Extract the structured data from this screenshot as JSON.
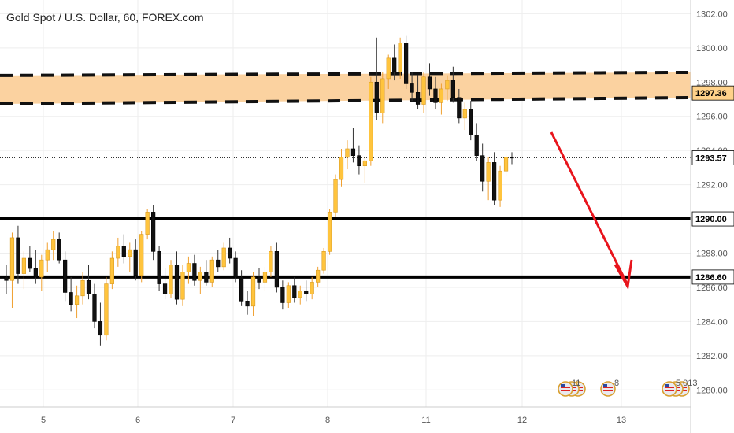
{
  "header": {
    "title": "Gold Spot / U.S. Dollar, 60, FOREX.com"
  },
  "colors": {
    "up": "#ffc43d",
    "down": "#111111",
    "wick_up": "#f0a030",
    "wick_down": "#333333",
    "zone": "#fbd2a0",
    "arrow": "#e8141c",
    "grid": "#eeeeee"
  },
  "chart_data": {
    "type": "candlestick",
    "title": "Gold Spot / U.S. Dollar, 60, FOREX.com",
    "ylim": [
      1279,
      1302.8
    ],
    "y_ticks": [
      "1280.00",
      "1282.00",
      "1284.00",
      "1286.00",
      "1288.00",
      "1290.00",
      "1292.00",
      "1294.00",
      "1296.00",
      "1298.00",
      "1300.00",
      "1302.00"
    ],
    "x_ticks": [
      "5",
      "6",
      "7",
      "8",
      "11",
      "12",
      "13"
    ],
    "current_price": "1293.57",
    "levels": [
      {
        "label": "1290.00",
        "value": 1290.0
      },
      {
        "label": "1286.60",
        "value": 1286.6
      }
    ],
    "zone": {
      "label": "1297.36",
      "low": 1297.0,
      "high": 1298.2
    },
    "event_markers": [
      {
        "label": "11"
      },
      {
        "label": "8"
      },
      {
        "label": "5 013"
      }
    ],
    "series": [
      {
        "ohlc": [
          [
            1286.6,
            1287.3,
            1285.6,
            1286.4
          ],
          [
            1286.4,
            1289.2,
            1284.8,
            1288.9
          ],
          [
            1288.9,
            1289.6,
            1286.2,
            1286.8
          ],
          [
            1286.8,
            1288.1,
            1285.9,
            1287.7
          ],
          [
            1287.7,
            1288.4,
            1286.9,
            1287.1
          ],
          [
            1287.1,
            1288.2,
            1286.2,
            1286.6
          ],
          [
            1286.6,
            1287.9,
            1285.8,
            1287.6
          ],
          [
            1287.6,
            1288.6,
            1286.9,
            1288.2
          ],
          [
            1288.2,
            1289.3,
            1287.6,
            1288.8
          ],
          [
            1288.8,
            1289.2,
            1287.4,
            1287.6
          ],
          [
            1287.6,
            1288.1,
            1285.2,
            1285.7
          ],
          [
            1285.7,
            1286.6,
            1284.6,
            1285.0
          ],
          [
            1285.0,
            1286.1,
            1284.2,
            1285.5
          ],
          [
            1285.5,
            1286.9,
            1285.0,
            1286.4
          ],
          [
            1286.4,
            1287.3,
            1285.3,
            1285.6
          ],
          [
            1285.6,
            1286.2,
            1283.6,
            1284.0
          ],
          [
            1284.0,
            1285.1,
            1282.6,
            1283.2
          ],
          [
            1283.2,
            1286.6,
            1282.9,
            1286.2
          ],
          [
            1286.2,
            1288.1,
            1285.9,
            1287.7
          ],
          [
            1287.7,
            1288.9,
            1287.2,
            1288.4
          ],
          [
            1288.4,
            1289.1,
            1287.4,
            1287.8
          ],
          [
            1287.8,
            1288.6,
            1286.9,
            1288.2
          ],
          [
            1288.2,
            1288.8,
            1286.4,
            1286.7
          ],
          [
            1286.7,
            1289.3,
            1286.3,
            1289.1
          ],
          [
            1289.1,
            1290.6,
            1288.8,
            1290.4
          ],
          [
            1290.4,
            1290.8,
            1287.6,
            1288.1
          ],
          [
            1288.1,
            1288.4,
            1285.8,
            1286.2
          ],
          [
            1286.2,
            1287.1,
            1285.3,
            1285.6
          ],
          [
            1285.6,
            1287.6,
            1285.4,
            1287.3
          ],
          [
            1287.3,
            1288.1,
            1285.0,
            1285.3
          ],
          [
            1285.3,
            1287.3,
            1284.9,
            1286.9
          ],
          [
            1286.9,
            1287.8,
            1286.2,
            1287.4
          ],
          [
            1287.4,
            1287.9,
            1286.1,
            1286.4
          ],
          [
            1286.4,
            1287.2,
            1285.6,
            1286.9
          ],
          [
            1286.9,
            1287.6,
            1286.1,
            1286.3
          ],
          [
            1286.3,
            1287.8,
            1286.0,
            1287.6
          ],
          [
            1287.6,
            1288.2,
            1286.9,
            1287.2
          ],
          [
            1287.2,
            1288.6,
            1287.0,
            1288.3
          ],
          [
            1288.3,
            1288.9,
            1287.4,
            1287.7
          ],
          [
            1287.7,
            1288.1,
            1286.3,
            1286.6
          ],
          [
            1286.6,
            1287.0,
            1284.9,
            1285.2
          ],
          [
            1285.2,
            1285.8,
            1284.4,
            1284.9
          ],
          [
            1284.9,
            1286.9,
            1284.3,
            1286.6
          ],
          [
            1286.6,
            1287.1,
            1285.9,
            1286.3
          ],
          [
            1286.3,
            1287.2,
            1285.8,
            1286.9
          ],
          [
            1286.9,
            1288.4,
            1286.6,
            1288.1
          ],
          [
            1288.1,
            1288.6,
            1285.7,
            1286.0
          ],
          [
            1286.0,
            1286.4,
            1284.7,
            1285.1
          ],
          [
            1285.1,
            1286.3,
            1284.8,
            1286.1
          ],
          [
            1286.1,
            1286.6,
            1285.1,
            1285.4
          ],
          [
            1285.4,
            1286.1,
            1285.0,
            1285.8
          ],
          [
            1285.8,
            1286.4,
            1285.2,
            1285.6
          ],
          [
            1285.6,
            1286.6,
            1285.3,
            1286.3
          ],
          [
            1286.3,
            1287.2,
            1286.0,
            1287.0
          ],
          [
            1287.0,
            1288.3,
            1286.8,
            1288.1
          ],
          [
            1288.1,
            1290.6,
            1287.9,
            1290.4
          ],
          [
            1290.4,
            1292.6,
            1290.1,
            1292.3
          ],
          [
            1292.3,
            1294.1,
            1291.9,
            1293.6
          ],
          [
            1293.6,
            1294.6,
            1292.9,
            1294.1
          ],
          [
            1294.1,
            1295.3,
            1293.3,
            1293.7
          ],
          [
            1293.7,
            1294.3,
            1292.6,
            1293.1
          ],
          [
            1293.1,
            1293.6,
            1292.1,
            1293.4
          ],
          [
            1293.4,
            1298.3,
            1293.1,
            1298.0
          ],
          [
            1298.0,
            1300.6,
            1295.8,
            1296.2
          ],
          [
            1296.2,
            1298.6,
            1295.6,
            1298.2
          ],
          [
            1298.2,
            1299.6,
            1297.6,
            1299.4
          ],
          [
            1299.4,
            1300.2,
            1298.1,
            1298.6
          ],
          [
            1298.6,
            1300.6,
            1298.2,
            1300.3
          ],
          [
            1300.3,
            1300.7,
            1297.6,
            1297.9
          ],
          [
            1297.9,
            1298.6,
            1296.9,
            1297.4
          ],
          [
            1297.4,
            1298.4,
            1296.4,
            1296.7
          ],
          [
            1296.7,
            1298.6,
            1296.2,
            1298.3
          ],
          [
            1298.3,
            1299.1,
            1297.2,
            1297.6
          ],
          [
            1297.6,
            1298.3,
            1296.4,
            1296.8
          ],
          [
            1296.8,
            1297.9,
            1296.1,
            1297.6
          ],
          [
            1297.6,
            1298.4,
            1296.9,
            1298.1
          ],
          [
            1298.1,
            1298.9,
            1296.8,
            1297.1
          ],
          [
            1297.1,
            1297.6,
            1295.6,
            1295.9
          ],
          [
            1295.9,
            1296.8,
            1295.2,
            1296.4
          ],
          [
            1296.4,
            1296.9,
            1294.6,
            1294.9
          ],
          [
            1294.9,
            1295.6,
            1293.4,
            1293.7
          ],
          [
            1293.7,
            1294.4,
            1291.6,
            1292.2
          ],
          [
            1292.2,
            1293.6,
            1291.1,
            1293.3
          ],
          [
            1293.3,
            1293.9,
            1290.8,
            1291.1
          ],
          [
            1291.1,
            1293.1,
            1290.7,
            1292.8
          ],
          [
            1292.8,
            1293.8,
            1292.5,
            1293.6
          ],
          [
            1293.6,
            1293.9,
            1293.2,
            1293.57
          ]
        ]
      }
    ]
  }
}
